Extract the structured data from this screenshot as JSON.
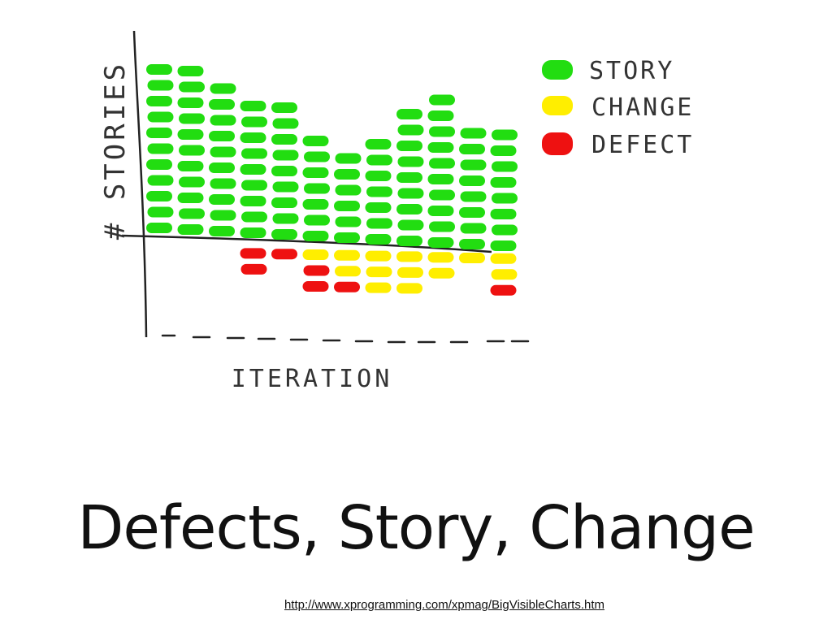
{
  "slide": {
    "title": "Defects, Story, Change",
    "link": "http://www.xprogramming.com/xpmag/BigVisibleCharts.htm"
  },
  "chart_data": {
    "type": "bar",
    "xlabel": "ITERATION",
    "ylabel": "# STORIES",
    "categories": [
      "",
      "",
      "",
      "",
      "",
      "",
      "",
      "",
      "",
      "",
      "",
      ""
    ],
    "series": [
      {
        "name": "STORY",
        "color": "#22dd11",
        "values": [
          11,
          11,
          10,
          9,
          9,
          7,
          6,
          7,
          9,
          10,
          8,
          8
        ]
      },
      {
        "name": "CHANGE",
        "color": "#ffee00",
        "values": [
          0,
          0,
          0,
          0,
          0,
          1,
          2,
          3,
          3,
          2,
          1,
          2
        ]
      },
      {
        "name": "DEFECT",
        "color": "#ee1111",
        "values": [
          0,
          0,
          0,
          2,
          1,
          2,
          1,
          0,
          0,
          0,
          0,
          1
        ]
      }
    ],
    "stacking": "STORY above axis; CHANGE then DEFECT below axis",
    "legend": "top-right",
    "grid": false
  }
}
